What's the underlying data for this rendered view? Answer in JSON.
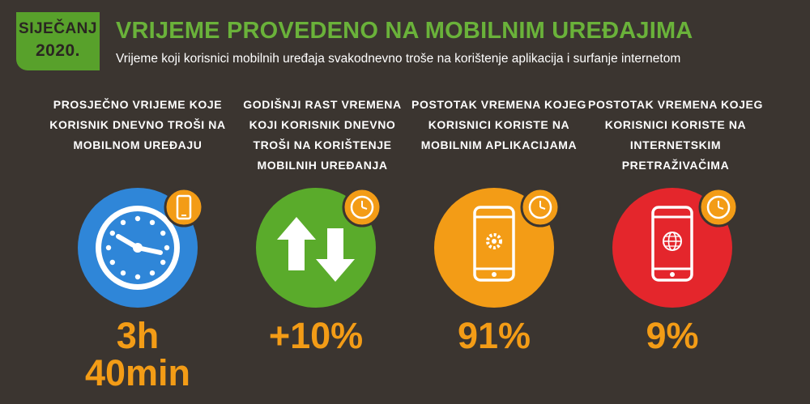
{
  "header": {
    "badge_month": "SIJEČANJ",
    "badge_year": "2020.",
    "title": "VRIJEME PROVEDENO NA MOBILNIM UREĐAJIMA",
    "subtitle": "Vrijeme koji korisnici mobilnih uređaja svakodnevno troše na korištenje aplikacija i surfanje internetom"
  },
  "stats": [
    {
      "label": "PROSJEČNO VRIJEME KOJE KORISNIK DNEVNO TROŠI NA MOBILNOM UREĐAJU",
      "value_line1": "3h",
      "value_line2": "40min",
      "circle_color": "#2f86d8",
      "icon": "clock-icon"
    },
    {
      "label": "GODIŠNJI RAST VREMENA KOJI KORISNIK DNEVNO TROŠI NA KORIŠTENJE MOBILNIH UREĐANJA",
      "value_line1": "+10%",
      "circle_color": "#5aab2b",
      "icon": "up-down-arrows-icon"
    },
    {
      "label": "POSTOTAK VREMENA KOJEG KORISNICI KORISTE NA MOBILNIM APLIKACIJAMA",
      "value_line1": "91%",
      "circle_color": "#f39c16",
      "icon": "phone-gear-icon"
    },
    {
      "label": "POSTOTAK VREMENA KOJEG KORISNICI KORISTE NA INTERNETSKIM PRETRAŽIVAČIMA",
      "value_line1": "9%",
      "circle_color": "#e4262c",
      "icon": "phone-globe-icon"
    }
  ],
  "colors": {
    "background": "#3b3530",
    "accent_green": "#58a12b",
    "value_orange": "#f39c16",
    "badge_orange": "#f39c16"
  }
}
